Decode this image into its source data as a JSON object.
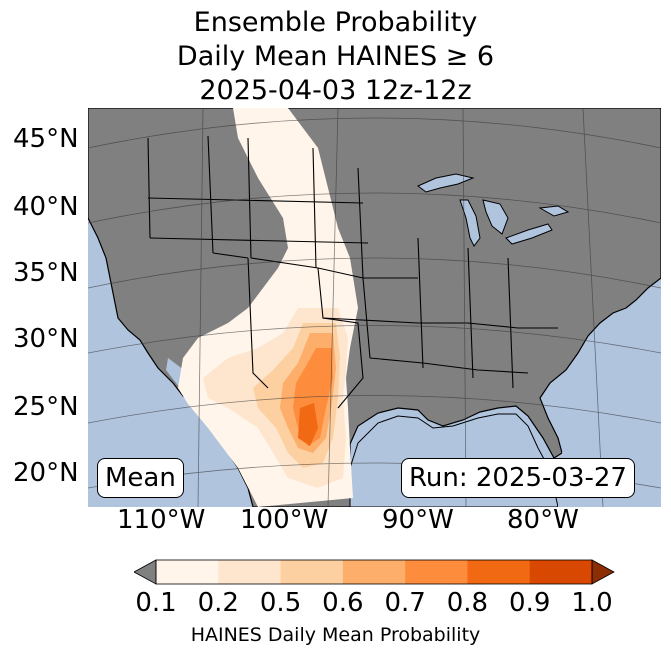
{
  "title": {
    "line1": "Ensemble Probability",
    "line2": "Daily Mean HAINES ≥ 6",
    "line3": "2025-04-03 12z-12z"
  },
  "map": {
    "lat_labels": [
      "45°N",
      "40°N",
      "35°N",
      "30°N",
      "25°N",
      "20°N"
    ],
    "lon_labels": [
      "110°W",
      "100°W",
      "90°W",
      "80°W"
    ],
    "ocean_color": "#b0c4de",
    "land_color": "#808080"
  },
  "annotations": {
    "mean_label": "Mean",
    "run_label": "Run: 2025-03-27"
  },
  "colorbar": {
    "ticks": [
      "0.1",
      "0.2",
      "0.5",
      "0.6",
      "0.7",
      "0.8",
      "0.9",
      "1.0"
    ],
    "label": "HAINES Daily Mean Probability",
    "colors": [
      "#fff5eb",
      "#fee6ce",
      "#fdd0a2",
      "#fdae6b",
      "#fd8d3c",
      "#f16913",
      "#d94801"
    ],
    "under_color": "#808080",
    "over_color": "#8c2d04"
  }
}
